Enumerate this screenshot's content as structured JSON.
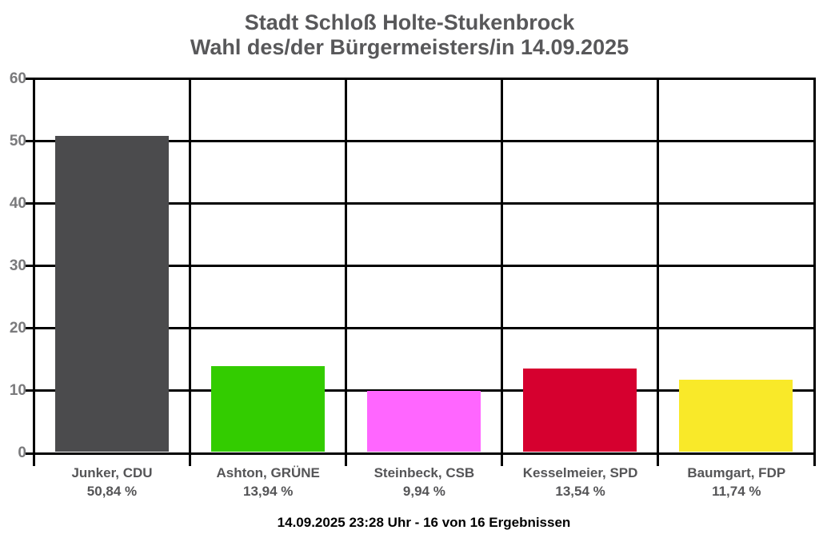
{
  "title": {
    "line1": "Stadt Schloß Holte-Stukenbrock",
    "line2": "Wahl des/der Bürgermeisters/in 14.09.2025"
  },
  "footer": "14.09.2025 23:28 Uhr - 16 von 16 Ergebnissen",
  "colors": {
    "background": "#ffffff",
    "grid": "#000000",
    "title_text": "#58585a",
    "tick_label_text": "#7a7a7c",
    "category_label_text": "#555557",
    "footer_text": "#000000"
  },
  "chart_data": {
    "type": "bar",
    "title": "Stadt Schloß Holte-Stukenbrock",
    "subtitle": "Wahl des/der Bürgermeisters/in 14.09.2025",
    "categories": [
      "Junker, CDU",
      "Ashton, GRÜNE",
      "Steinbeck, CSB",
      "Kesselmeier, SPD",
      "Baumgart, FDP"
    ],
    "values": [
      50.84,
      13.94,
      9.94,
      13.54,
      11.74
    ],
    "value_labels": [
      "50,84 %",
      "13,94 %",
      "9,94 %",
      "13,54 %",
      "11,74 %"
    ],
    "bar_colors": [
      "#4b4b4d",
      "#33cc00",
      "#ff66ff",
      "#d6002f",
      "#f9e929"
    ],
    "xlabel": "",
    "ylabel": "",
    "ylim": [
      0,
      60
    ],
    "yticks": [
      0,
      10,
      20,
      30,
      40,
      50,
      60
    ],
    "grid": true,
    "legend": false,
    "annotation": "14.09.2025 23:28 Uhr - 16 von 16 Ergebnissen"
  }
}
